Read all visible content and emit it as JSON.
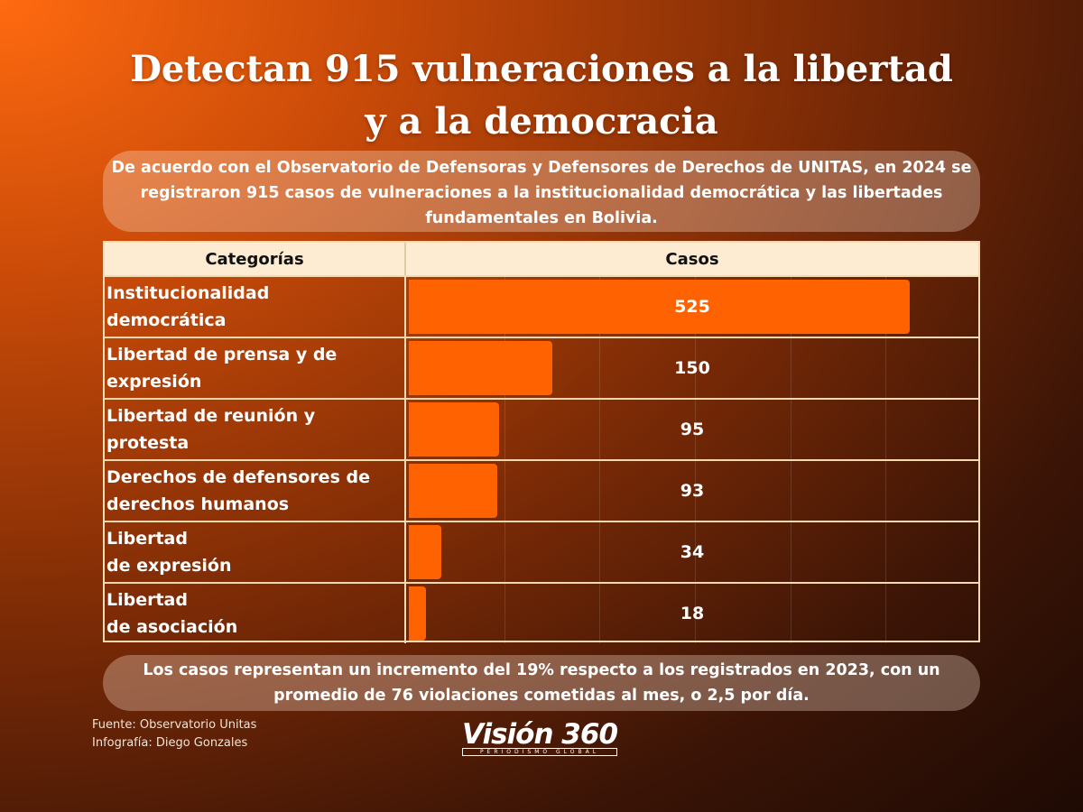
{
  "title_line1": "Detectan 915 vulneraciones a la libertad",
  "title_line2": "y a la democracia",
  "intro": "De acuerdo con el Observatorio de Defensoras y Defensores de Derechos de UNITAS, en 2024 se registraron 915 casos de vulneraciones a la institucionalidad democrática y las libertades fundamentales en Bolivia.",
  "conclusion": "Los casos representan un incremento del 19% respecto a los registrados en 2023, con un promedio de 76 violaciones cometidas al mes, o 2,5 por día.",
  "footer": {
    "source": "Fuente: Observatorio Unitas",
    "credit": "Infografía: Diego Gonzales"
  },
  "logo": {
    "name": "Visión 360",
    "tagline": "PERIODISMO GLOBAL"
  },
  "chart_data": {
    "type": "bar",
    "orientation": "horizontal",
    "headers": [
      "Categorías",
      "Casos"
    ],
    "categories": [
      "Institucionalidad\ndemocrática",
      "Libertad de prensa y de\nexpresión",
      "Libertad de reunión y\nprotesta",
      "Derechos de defensores de\nderechos  humanos",
      "Libertad\nde expresión",
      "Libertad\nde asociación"
    ],
    "values": [
      525,
      150,
      95,
      93,
      34,
      18
    ],
    "xlim": [
      0,
      600
    ],
    "grid_step": 100,
    "bar_color": "#ff6200"
  }
}
